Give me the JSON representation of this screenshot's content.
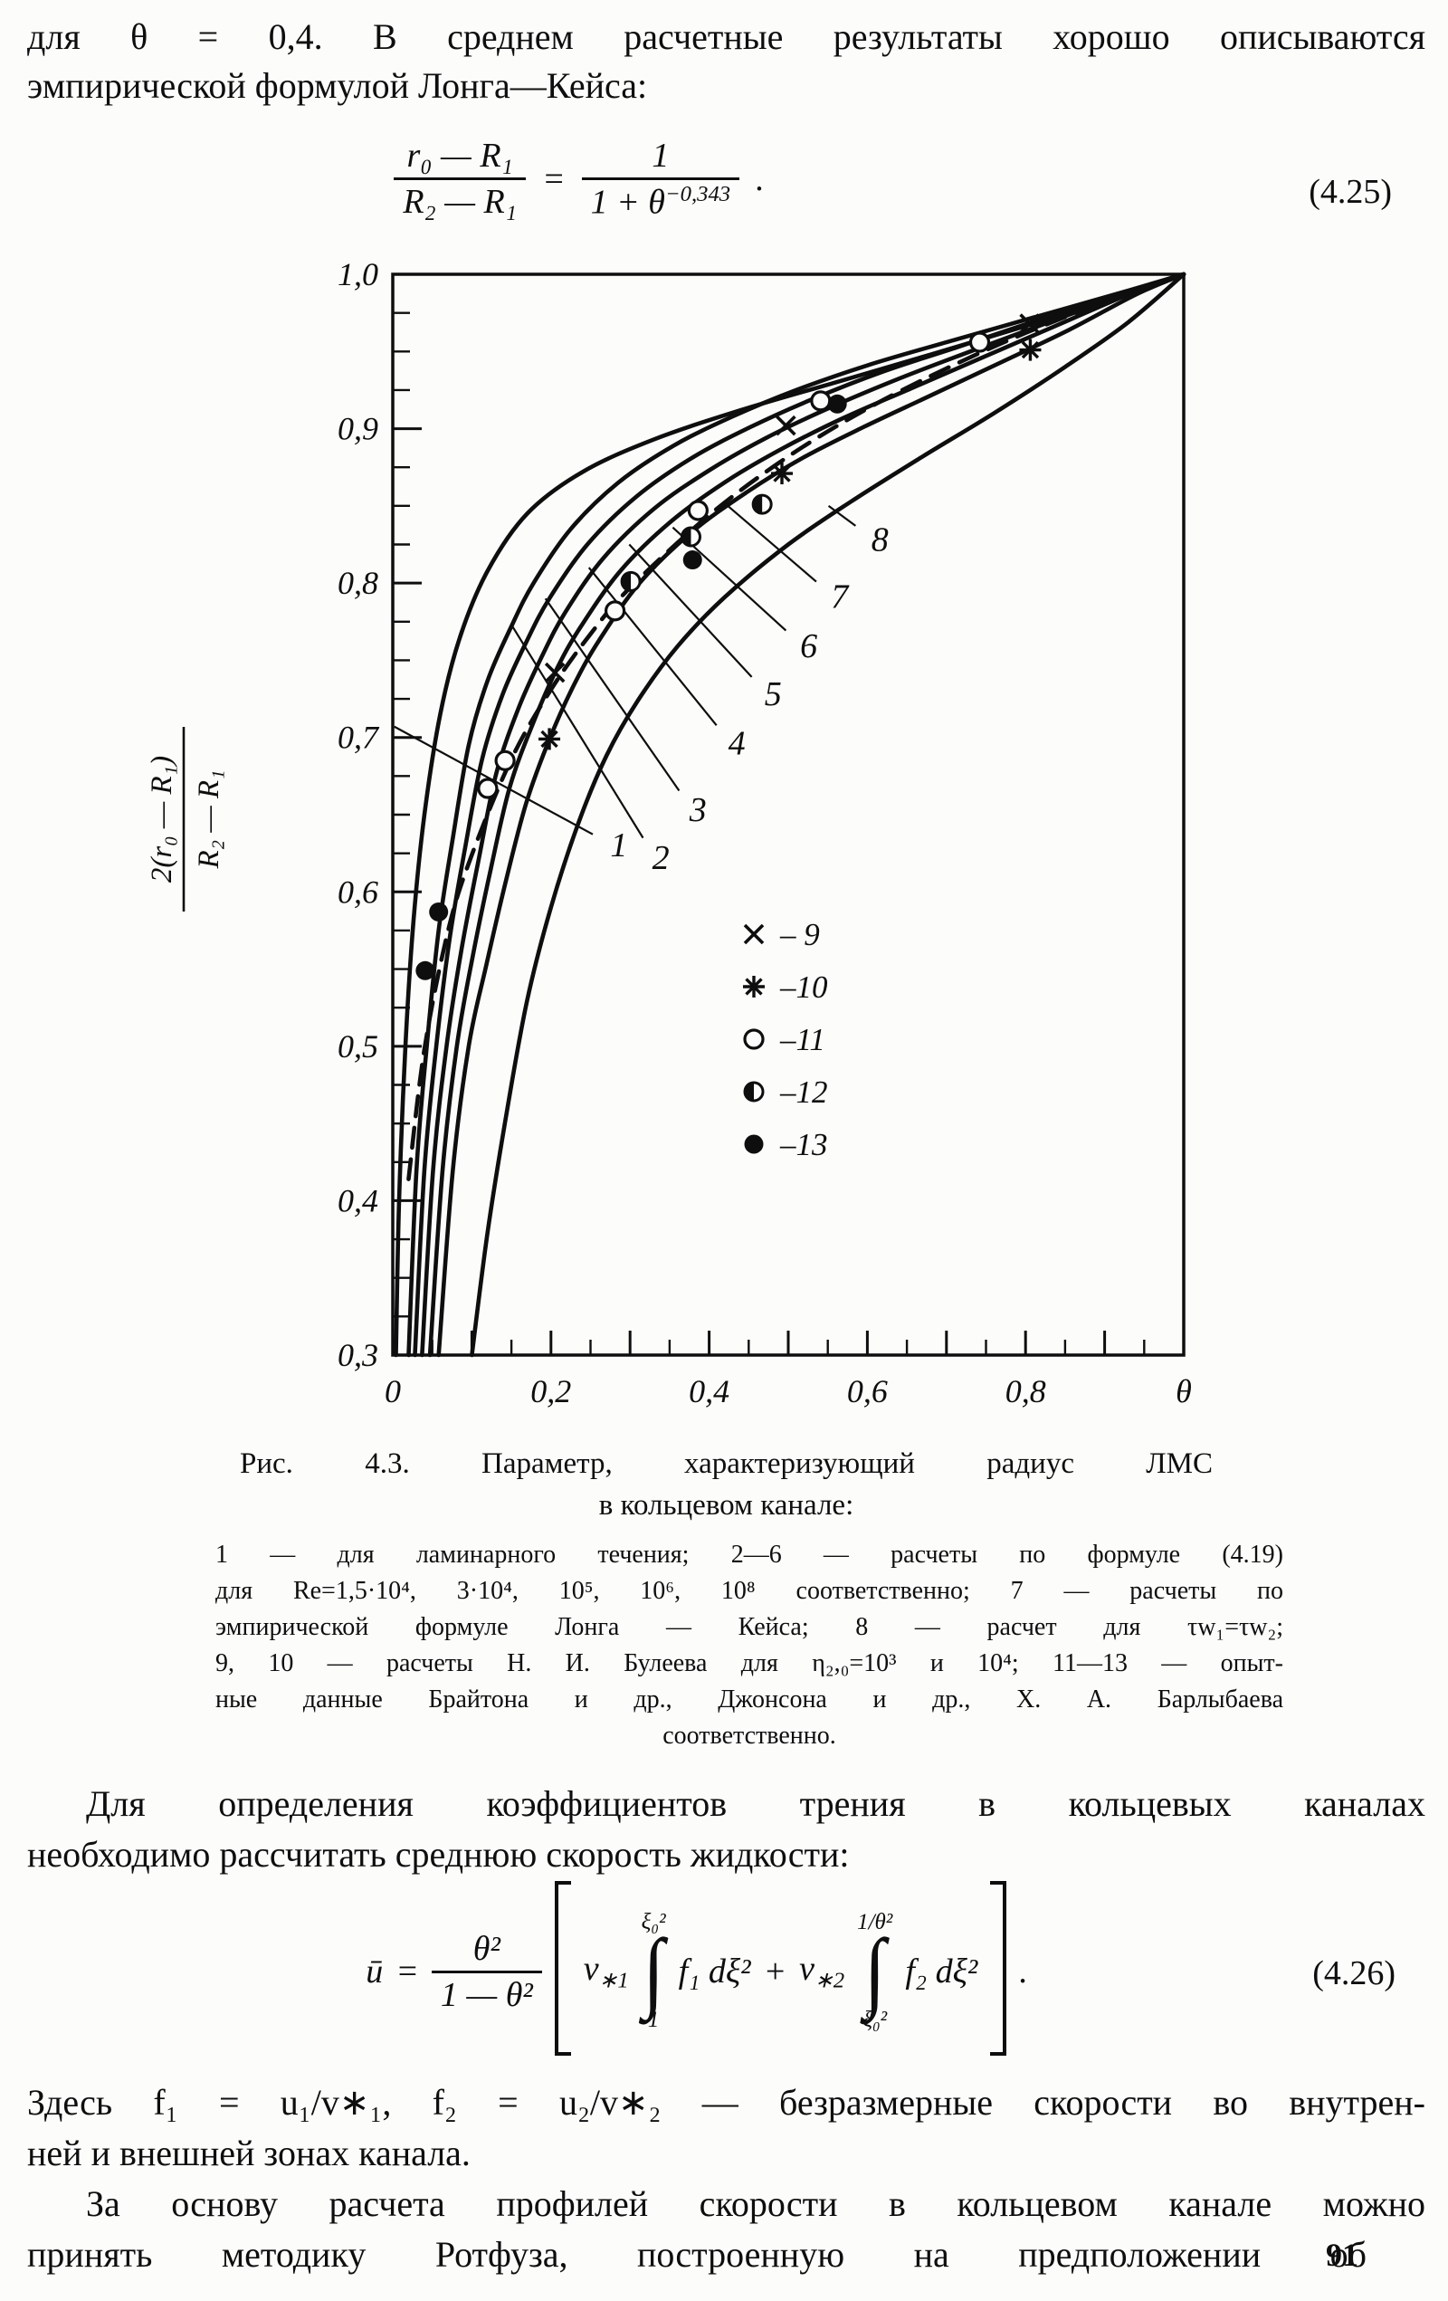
{
  "header": {
    "line1": "для θ = 0,4. В среднем расчетные результаты хорошо описываются",
    "line2": "эмпирической формулой Лонга—Кейса:"
  },
  "eq425": {
    "left_num": "r₀ — R₁",
    "left_den": "R₂ — R₁",
    "equals": "=",
    "right_num": "1",
    "right_den_base": "1 + θ",
    "right_den_exp": "−0,343",
    "dot": ".",
    "tag": "(4.25)"
  },
  "chart_data": {
    "type": "line",
    "title": "Рис. 4.3. Параметр, характеризующий радиус ЛМС в кольцевом канале",
    "xlabel": "θ",
    "ylabel": "2(r₀-R₁)/(R₂-R₁)",
    "ylabel_frac": {
      "num": "2(r₀ — R₁)",
      "den": "R₂ — R₁"
    },
    "xlim": [
      0,
      1
    ],
    "ylim": [
      0.3,
      1.0
    ],
    "grid": false,
    "x_tick_minor": 0.05,
    "x_tick_major": 0.1,
    "y_tick_minor": 0.025,
    "y_tick_major": 0.1,
    "x_ticklabels": [
      {
        "v": 0.0,
        "t": "0"
      },
      {
        "v": 0.2,
        "t": "0,2"
      },
      {
        "v": 0.4,
        "t": "0,4"
      },
      {
        "v": 0.6,
        "t": "0,6"
      },
      {
        "v": 0.8,
        "t": "0,8"
      },
      {
        "v": 1.0,
        "t": "θ"
      }
    ],
    "y_ticklabels": [
      {
        "v": 1.0,
        "t": "1,0"
      },
      {
        "v": 0.9,
        "t": "0,9"
      },
      {
        "v": 0.8,
        "t": "0,8"
      },
      {
        "v": 0.7,
        "t": "0,7"
      },
      {
        "v": 0.6,
        "t": "0,6"
      },
      {
        "v": 0.5,
        "t": "0,5"
      },
      {
        "v": 0.4,
        "t": "0,4"
      },
      {
        "v": 0.3,
        "t": "0,3"
      }
    ],
    "curves": [
      {
        "name": "1",
        "style": "solid",
        "points": [
          [
            0.004,
            0.3
          ],
          [
            0.008,
            0.4
          ],
          [
            0.016,
            0.5
          ],
          [
            0.026,
            0.58
          ],
          [
            0.04,
            0.65
          ],
          [
            0.06,
            0.715
          ],
          [
            0.085,
            0.765
          ],
          [
            0.12,
            0.808
          ],
          [
            0.17,
            0.845
          ],
          [
            0.24,
            0.872
          ],
          [
            0.33,
            0.893
          ],
          [
            0.44,
            0.912
          ],
          [
            0.56,
            0.93
          ],
          [
            0.68,
            0.948
          ],
          [
            0.81,
            0.968
          ],
          [
            0.92,
            0.985
          ],
          [
            1.0,
            1.0
          ]
        ]
      },
      {
        "name": "2",
        "style": "solid",
        "points": [
          [
            0.02,
            0.3
          ],
          [
            0.03,
            0.42
          ],
          [
            0.043,
            0.5
          ],
          [
            0.058,
            0.575
          ],
          [
            0.076,
            0.635
          ],
          [
            0.096,
            0.695
          ],
          [
            0.12,
            0.737
          ],
          [
            0.15,
            0.772
          ],
          [
            0.178,
            0.8
          ],
          [
            0.225,
            0.835
          ],
          [
            0.285,
            0.865
          ],
          [
            0.355,
            0.889
          ],
          [
            0.43,
            0.908
          ],
          [
            0.51,
            0.925
          ],
          [
            0.6,
            0.941
          ],
          [
            0.7,
            0.956
          ],
          [
            0.81,
            0.972
          ],
          [
            0.92,
            0.988
          ],
          [
            1.0,
            1.0
          ]
        ]
      },
      {
        "name": "3",
        "style": "solid",
        "points": [
          [
            0.028,
            0.3
          ],
          [
            0.04,
            0.42
          ],
          [
            0.055,
            0.5
          ],
          [
            0.072,
            0.57
          ],
          [
            0.092,
            0.63
          ],
          [
            0.113,
            0.686
          ],
          [
            0.139,
            0.728
          ],
          [
            0.169,
            0.762
          ],
          [
            0.198,
            0.79
          ],
          [
            0.246,
            0.825
          ],
          [
            0.308,
            0.856
          ],
          [
            0.378,
            0.881
          ],
          [
            0.452,
            0.901
          ],
          [
            0.53,
            0.919
          ],
          [
            0.62,
            0.937
          ],
          [
            0.715,
            0.953
          ],
          [
            0.82,
            0.971
          ],
          [
            0.925,
            0.988
          ],
          [
            1.0,
            1.0
          ]
        ]
      },
      {
        "name": "4",
        "style": "solid",
        "points": [
          [
            0.037,
            0.3
          ],
          [
            0.051,
            0.42
          ],
          [
            0.068,
            0.5
          ],
          [
            0.087,
            0.563
          ],
          [
            0.109,
            0.622
          ],
          [
            0.131,
            0.677
          ],
          [
            0.159,
            0.719
          ],
          [
            0.189,
            0.753
          ],
          [
            0.218,
            0.781
          ],
          [
            0.266,
            0.816
          ],
          [
            0.33,
            0.848
          ],
          [
            0.4,
            0.873
          ],
          [
            0.472,
            0.894
          ],
          [
            0.55,
            0.913
          ],
          [
            0.638,
            0.932
          ],
          [
            0.73,
            0.95
          ],
          [
            0.83,
            0.969
          ],
          [
            0.93,
            0.988
          ],
          [
            1.0,
            1.0
          ]
        ]
      },
      {
        "name": "5",
        "style": "solid",
        "points": [
          [
            0.047,
            0.3
          ],
          [
            0.063,
            0.42
          ],
          [
            0.081,
            0.5
          ],
          [
            0.101,
            0.558
          ],
          [
            0.124,
            0.615
          ],
          [
            0.148,
            0.668
          ],
          [
            0.178,
            0.71
          ],
          [
            0.208,
            0.745
          ],
          [
            0.238,
            0.772
          ],
          [
            0.288,
            0.808
          ],
          [
            0.352,
            0.84
          ],
          [
            0.422,
            0.866
          ],
          [
            0.492,
            0.887
          ],
          [
            0.57,
            0.907
          ],
          [
            0.655,
            0.926
          ],
          [
            0.745,
            0.946
          ],
          [
            0.84,
            0.967
          ],
          [
            0.935,
            0.988
          ],
          [
            1.0,
            1.0
          ]
        ]
      },
      {
        "name": "6",
        "style": "solid",
        "points": [
          [
            0.058,
            0.3
          ],
          [
            0.076,
            0.42
          ],
          [
            0.096,
            0.5
          ],
          [
            0.118,
            0.552
          ],
          [
            0.143,
            0.607
          ],
          [
            0.169,
            0.658
          ],
          [
            0.199,
            0.7
          ],
          [
            0.23,
            0.735
          ],
          [
            0.261,
            0.763
          ],
          [
            0.312,
            0.8
          ],
          [
            0.378,
            0.833
          ],
          [
            0.448,
            0.859
          ],
          [
            0.518,
            0.881
          ],
          [
            0.595,
            0.901
          ],
          [
            0.678,
            0.921
          ],
          [
            0.765,
            0.942
          ],
          [
            0.855,
            0.964
          ],
          [
            0.94,
            0.987
          ],
          [
            1.0,
            1.0
          ]
        ]
      },
      {
        "name": "7",
        "style": "dashed",
        "points": [
          [
            0.02,
            0.414
          ],
          [
            0.04,
            0.498
          ],
          [
            0.07,
            0.575
          ],
          [
            0.1,
            0.624
          ],
          [
            0.15,
            0.686
          ],
          [
            0.2,
            0.731
          ],
          [
            0.25,
            0.767
          ],
          [
            0.3,
            0.797
          ],
          [
            0.4,
            0.844
          ],
          [
            0.5,
            0.882
          ],
          [
            0.6,
            0.913
          ],
          [
            0.7,
            0.939
          ],
          [
            0.8,
            0.962
          ],
          [
            0.9,
            0.982
          ],
          [
            1.0,
            1.0
          ]
        ]
      },
      {
        "name": "8",
        "style": "solid",
        "points": [
          [
            0.1,
            0.3
          ],
          [
            0.12,
            0.38
          ],
          [
            0.145,
            0.46
          ],
          [
            0.17,
            0.53
          ],
          [
            0.2,
            0.59
          ],
          [
            0.235,
            0.645
          ],
          [
            0.27,
            0.688
          ],
          [
            0.31,
            0.724
          ],
          [
            0.36,
            0.759
          ],
          [
            0.42,
            0.791
          ],
          [
            0.5,
            0.825
          ],
          [
            0.58,
            0.853
          ],
          [
            0.67,
            0.882
          ],
          [
            0.76,
            0.91
          ],
          [
            0.85,
            0.94
          ],
          [
            0.93,
            0.969
          ],
          [
            1.0,
            1.0
          ]
        ]
      }
    ],
    "curve_labels": [
      {
        "label": "1",
        "label_at": [
          0.279,
          0.63
        ],
        "attach": [
          0.002,
          0.707
        ]
      },
      {
        "label": "2",
        "label_at": [
          0.332,
          0.622
        ],
        "attach": [
          0.15,
          0.773
        ]
      },
      {
        "label": "3",
        "label_at": [
          0.379,
          0.653
        ],
        "attach": [
          0.193,
          0.79
        ]
      },
      {
        "label": "4",
        "label_at": [
          0.428,
          0.696
        ],
        "attach": [
          0.248,
          0.81
        ]
      },
      {
        "label": "5",
        "label_at": [
          0.474,
          0.728
        ],
        "attach": [
          0.299,
          0.825
        ]
      },
      {
        "label": "6",
        "label_at": [
          0.519,
          0.759
        ],
        "attach": [
          0.354,
          0.836
        ]
      },
      {
        "label": "7",
        "label_at": [
          0.558,
          0.791
        ],
        "attach": [
          0.419,
          0.852
        ]
      },
      {
        "label": "8",
        "label_at": [
          0.609,
          0.828
        ],
        "attach": [
          0.551,
          0.85
        ]
      }
    ],
    "points": [
      {
        "name": "9",
        "symbol": "cross",
        "data": [
          [
            0.205,
            0.742
          ],
          [
            0.497,
            0.902
          ],
          [
            0.805,
            0.968
          ]
        ]
      },
      {
        "name": "10",
        "symbol": "asterisk",
        "data": [
          [
            0.198,
            0.699
          ],
          [
            0.492,
            0.871
          ],
          [
            0.806,
            0.951
          ]
        ]
      },
      {
        "name": "11",
        "symbol": "circle",
        "data": [
          [
            0.12,
            0.667
          ],
          [
            0.142,
            0.685
          ],
          [
            0.281,
            0.782
          ],
          [
            0.386,
            0.847
          ],
          [
            0.541,
            0.918
          ],
          [
            0.742,
            0.956
          ]
        ]
      },
      {
        "name": "12",
        "symbol": "half-circle",
        "data": [
          [
            0.301,
            0.801
          ],
          [
            0.377,
            0.83
          ],
          [
            0.467,
            0.851
          ]
        ]
      },
      {
        "name": "13",
        "symbol": "dot",
        "data": [
          [
            0.041,
            0.549
          ],
          [
            0.058,
            0.587
          ],
          [
            0.379,
            0.815
          ],
          [
            0.562,
            0.916
          ]
        ]
      }
    ],
    "legend": {
      "position": "inside-lower-middle",
      "entries": [
        {
          "symbol": "cross",
          "label": "– 9"
        },
        {
          "symbol": "asterisk",
          "label": "–10"
        },
        {
          "symbol": "circle",
          "label": "–11"
        },
        {
          "symbol": "half-circle",
          "label": "–12"
        },
        {
          "symbol": "dot",
          "label": "–13"
        }
      ]
    }
  },
  "caption": {
    "title1": "Рис. 4.3. Параметр, характеризующий радиус ЛМС",
    "title2": "в кольцевом канале:",
    "lines": [
      "1 — для ламинарного течения; 2—6 — расчеты по формуле (4.19)",
      "для Re=1,5·10⁴, 3·10⁴, 10⁵, 10⁶, 10⁸ соответственно; 7 — расчеты по",
      "эмпирической формуле Лонга — Кейса; 8 — расчет для τw₁=τw₂;",
      "9, 10 — расчеты Н. И. Булеева для η₂,₀=10³ и 10⁴; 11—13 — опыт-",
      "ные данные Брайтона и др., Джонсона и др., Х. А. Барлыбаева",
      "соответственно."
    ]
  },
  "para2": {
    "line1": "Для определения коэффициентов трения в кольцевых каналах",
    "line2": "необходимо рассчитать среднюю скорость жидкости:"
  },
  "eq426": {
    "lhs": "ū",
    "equals": "=",
    "frac_num": "θ²",
    "frac_den": "1 — θ²",
    "coef1_main": "v",
    "coef1_sub": "∗1",
    "int1_up": "ξ₀²",
    "int1_lo": "1",
    "body1": "f₁ dξ²",
    "plus": "+",
    "coef2_main": "v",
    "coef2_sub": "∗2",
    "int2_up": "1/θ²",
    "int2_lo": "ξ₀²",
    "body2": "f₂ dξ²",
    "dot": ".",
    "tag": "(4.26)"
  },
  "para3": {
    "line1": "Здесь f₁ = u₁/v∗₁, f₂ = u₂/v∗₂ — безразмерные скорости во внутрен-",
    "line2": "ней и внешней зонах канала."
  },
  "para4": {
    "line1": "За основу расчета профилей скорости в кольцевом канале можно",
    "line2": "принять методику Ротфуза, построенную на предположении об"
  },
  "page_number": "91",
  "colors": {
    "ink": "#0e0e0e",
    "paper": "#fcfcfa"
  }
}
